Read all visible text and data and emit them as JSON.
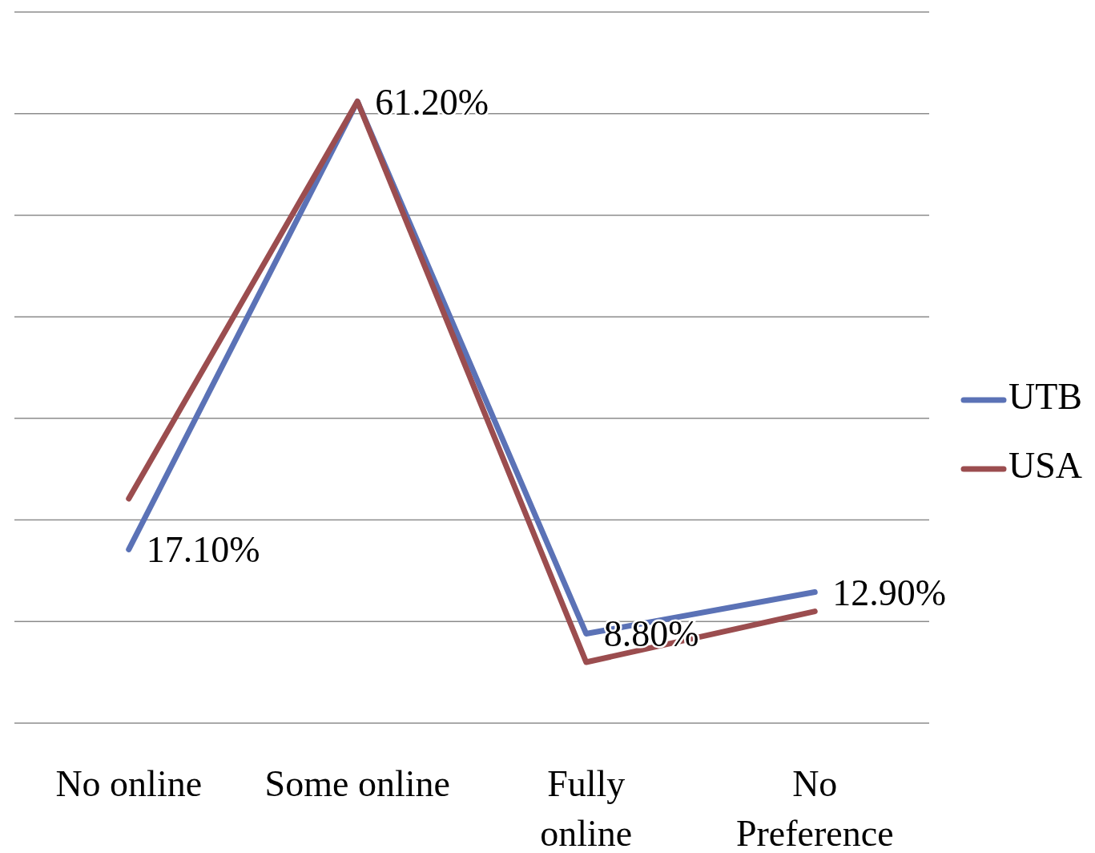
{
  "chart_data": {
    "type": "line",
    "categories": [
      "No online",
      "Some online",
      "Fully online",
      "No Preference"
    ],
    "series": [
      {
        "name": "UTB",
        "color": "#5b72b6",
        "values": [
          17.1,
          61.2,
          8.8,
          12.9
        ],
        "value_labels": [
          "17.10%",
          "61.20%",
          "8.80%",
          "12.90%"
        ]
      },
      {
        "name": "USA",
        "color": "#9b4d4f",
        "values": [
          22.1,
          61.2,
          6.0,
          11.0
        ]
      }
    ],
    "ylim": [
      0,
      70
    ],
    "yticks": [
      {
        "value": 0,
        "label": null
      },
      {
        "value": 10,
        "label": null
      },
      {
        "value": 20,
        "label": null
      },
      {
        "value": 30,
        "label": null
      },
      {
        "value": 40,
        "label": null
      },
      {
        "value": 50,
        "label": null
      },
      {
        "value": 60,
        "label": null
      },
      {
        "value": 70,
        "label": null
      }
    ],
    "tick_labels": "x",
    "grid": "y",
    "legend": "right",
    "marker": "none",
    "line_style": "solid"
  }
}
